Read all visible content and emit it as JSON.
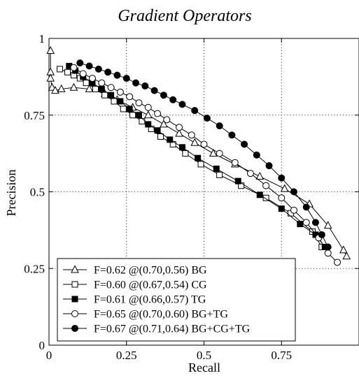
{
  "chart_data": {
    "type": "line",
    "title": "Gradient Operators",
    "xlabel": "Recall",
    "ylabel": "Precision",
    "xlim": [
      0,
      1
    ],
    "ylim": [
      0,
      1
    ],
    "xticks": [
      0,
      0.25,
      0.5,
      0.75,
      1
    ],
    "xtick_labels": [
      "0",
      "0.25",
      "0.5",
      "0.75",
      ""
    ],
    "yticks": [
      0,
      0.25,
      0.5,
      0.75,
      1
    ],
    "ytick_labels": [
      "0",
      "0.25",
      "0.5",
      "0.75",
      "1"
    ],
    "grid": true,
    "legend_position": "bottom-left",
    "series": [
      {
        "name": "BG",
        "legend": "F=0.62 @(0.70,0.56) BG",
        "marker": "triangle",
        "color": "#000000",
        "x": [
          0.005,
          0.005,
          0.005,
          0.01,
          0.02,
          0.04,
          0.08,
          0.13,
          0.18,
          0.22,
          0.27,
          0.32,
          0.37,
          0.42,
          0.47,
          0.53,
          0.6,
          0.68,
          0.76,
          0.84,
          0.9,
          0.95,
          0.96
        ],
        "y": [
          0.96,
          0.89,
          0.87,
          0.84,
          0.83,
          0.835,
          0.84,
          0.835,
          0.82,
          0.8,
          0.775,
          0.75,
          0.72,
          0.69,
          0.66,
          0.625,
          0.59,
          0.55,
          0.51,
          0.46,
          0.39,
          0.31,
          0.29
        ]
      },
      {
        "name": "CG",
        "legend": "F=0.60 @(0.67,0.54) CG",
        "marker": "square-open",
        "color": "#000000",
        "x": [
          0.035,
          0.06,
          0.08,
          0.1,
          0.12,
          0.15,
          0.18,
          0.21,
          0.24,
          0.27,
          0.3,
          0.33,
          0.36,
          0.4,
          0.44,
          0.49,
          0.55,
          0.62,
          0.7,
          0.78,
          0.85,
          0.88
        ],
        "y": [
          0.9,
          0.89,
          0.88,
          0.87,
          0.855,
          0.835,
          0.815,
          0.795,
          0.77,
          0.75,
          0.73,
          0.705,
          0.68,
          0.655,
          0.625,
          0.59,
          0.555,
          0.52,
          0.48,
          0.43,
          0.37,
          0.32
        ]
      },
      {
        "name": "TG",
        "legend": "F=0.61 @(0.66,0.57) TG",
        "marker": "square-filled",
        "color": "#000000",
        "x": [
          0.065,
          0.085,
          0.11,
          0.14,
          0.17,
          0.2,
          0.23,
          0.26,
          0.29,
          0.32,
          0.35,
          0.39,
          0.43,
          0.48,
          0.54,
          0.61,
          0.68,
          0.75,
          0.81,
          0.86,
          0.89
        ],
        "y": [
          0.91,
          0.895,
          0.875,
          0.855,
          0.835,
          0.815,
          0.795,
          0.77,
          0.75,
          0.72,
          0.7,
          0.67,
          0.645,
          0.61,
          0.575,
          0.535,
          0.49,
          0.445,
          0.395,
          0.36,
          0.32
        ]
      },
      {
        "name": "BG+TG",
        "legend": "F=0.65 @(0.70,0.60) BG+TG",
        "marker": "circle-open",
        "color": "#000000",
        "x": [
          0.08,
          0.11,
          0.14,
          0.17,
          0.2,
          0.23,
          0.26,
          0.29,
          0.32,
          0.35,
          0.38,
          0.42,
          0.46,
          0.5,
          0.55,
          0.6,
          0.65,
          0.7,
          0.75,
          0.79,
          0.83,
          0.87,
          0.9,
          0.93
        ],
        "y": [
          0.905,
          0.885,
          0.87,
          0.855,
          0.84,
          0.825,
          0.81,
          0.79,
          0.775,
          0.755,
          0.735,
          0.71,
          0.685,
          0.655,
          0.625,
          0.595,
          0.56,
          0.52,
          0.48,
          0.44,
          0.4,
          0.35,
          0.3,
          0.27
        ]
      },
      {
        "name": "BG+CG+TG",
        "legend": "F=0.67 @(0.71,0.64) BG+CG+TG",
        "marker": "circle-filled",
        "color": "#000000",
        "x": [
          0.1,
          0.13,
          0.16,
          0.19,
          0.22,
          0.25,
          0.28,
          0.31,
          0.34,
          0.37,
          0.4,
          0.43,
          0.47,
          0.51,
          0.55,
          0.59,
          0.63,
          0.67,
          0.71,
          0.75,
          0.79,
          0.83,
          0.86,
          0.88,
          0.9
        ],
        "y": [
          0.92,
          0.91,
          0.9,
          0.89,
          0.88,
          0.87,
          0.855,
          0.845,
          0.83,
          0.815,
          0.8,
          0.785,
          0.765,
          0.74,
          0.715,
          0.685,
          0.655,
          0.62,
          0.585,
          0.545,
          0.5,
          0.45,
          0.4,
          0.36,
          0.32
        ]
      }
    ]
  }
}
